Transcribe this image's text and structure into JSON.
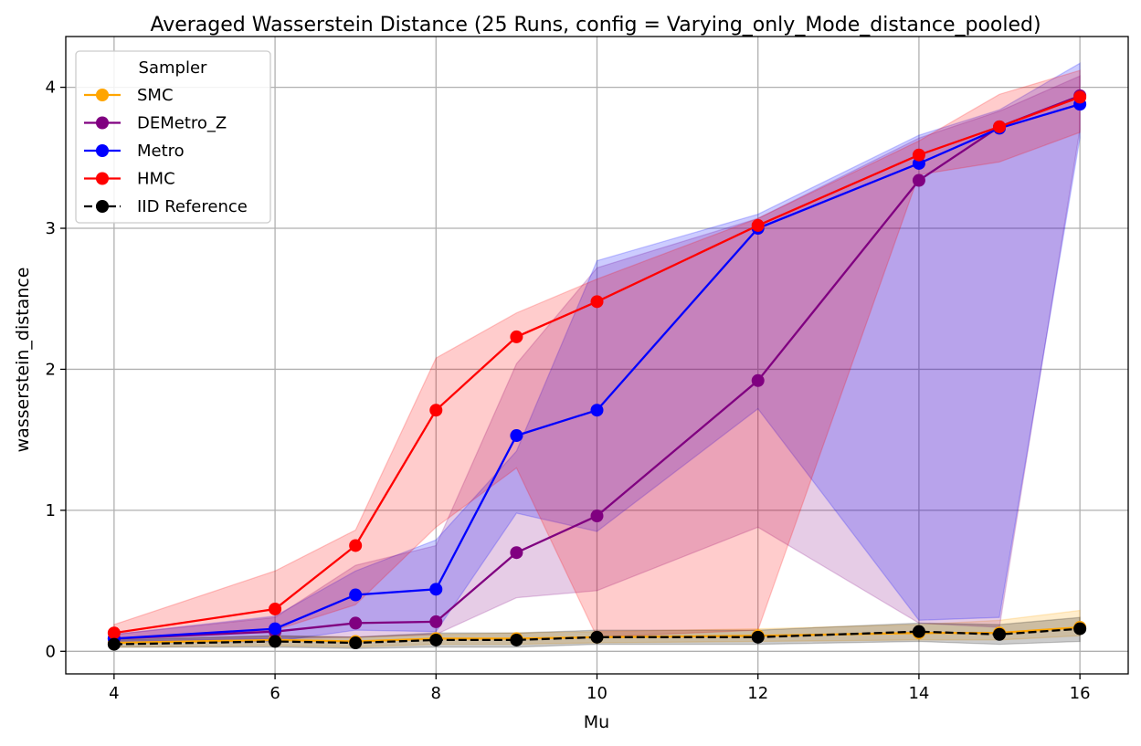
{
  "chart_data": {
    "type": "line",
    "title": "Averaged Wasserstein Distance (25 Runs, config = Varying_only_Mode_distance_pooled)",
    "xlabel": "Mu",
    "ylabel": "wasserstein_distance",
    "xlim": [
      3.4,
      16.6
    ],
    "ylim": [
      -0.16,
      4.36
    ],
    "xticks": [
      4,
      6,
      8,
      10,
      12,
      14,
      16
    ],
    "yticks": [
      0,
      1,
      2,
      3,
      4
    ],
    "grid": true,
    "legend_title": "Sampler",
    "legend_position": "top-left",
    "x": [
      4,
      6,
      7,
      8,
      9,
      10,
      12,
      14,
      15,
      16
    ],
    "series": [
      {
        "name": "SMC",
        "color": "#ffa500",
        "style": "solid",
        "values": [
          0.06,
          0.08,
          0.07,
          0.09,
          0.09,
          0.1,
          0.11,
          0.13,
          0.13,
          0.17
        ],
        "band_lower": [
          0.03,
          0.04,
          0.03,
          0.05,
          0.05,
          0.06,
          0.07,
          0.08,
          0.08,
          0.11
        ],
        "band_upper": [
          0.09,
          0.11,
          0.1,
          0.12,
          0.13,
          0.14,
          0.16,
          0.19,
          0.22,
          0.29
        ]
      },
      {
        "name": "DEMetro_Z",
        "color": "#800080",
        "style": "solid",
        "values": [
          0.09,
          0.14,
          0.2,
          0.21,
          0.7,
          0.96,
          1.92,
          3.34,
          3.72,
          3.94
        ],
        "band_lower": [
          0.07,
          0.09,
          0.1,
          0.12,
          0.38,
          0.43,
          0.88,
          0.2,
          0.17,
          3.7
        ],
        "band_upper": [
          0.12,
          0.24,
          0.61,
          0.75,
          2.04,
          2.72,
          3.07,
          3.64,
          3.83,
          4.08
        ]
      },
      {
        "name": "Metro",
        "color": "#0000ff",
        "style": "solid",
        "values": [
          0.09,
          0.16,
          0.4,
          0.44,
          1.53,
          1.71,
          3.0,
          3.46,
          3.71,
          3.88
        ],
        "band_lower": [
          0.06,
          0.07,
          0.15,
          0.14,
          0.98,
          0.85,
          1.72,
          0.22,
          0.24,
          3.64
        ],
        "band_upper": [
          0.12,
          0.25,
          0.57,
          0.79,
          1.42,
          2.77,
          3.1,
          3.66,
          3.84,
          4.17
        ]
      },
      {
        "name": "HMC",
        "color": "#ff0000",
        "style": "solid",
        "values": [
          0.13,
          0.3,
          0.75,
          1.71,
          2.23,
          2.48,
          3.02,
          3.52,
          3.72,
          3.93
        ],
        "band_lower": [
          0.09,
          0.15,
          0.33,
          0.88,
          1.3,
          0.1,
          0.15,
          3.38,
          3.47,
          3.68
        ],
        "band_upper": [
          0.19,
          0.57,
          0.86,
          2.08,
          2.4,
          2.64,
          3.07,
          3.62,
          3.95,
          4.12
        ]
      },
      {
        "name": "IID Reference",
        "color": "#000000",
        "style": "dashed",
        "values": [
          0.05,
          0.07,
          0.06,
          0.08,
          0.08,
          0.1,
          0.1,
          0.14,
          0.12,
          0.16
        ],
        "band_lower": [
          0.03,
          0.03,
          0.02,
          0.03,
          0.03,
          0.05,
          0.05,
          0.07,
          0.05,
          0.07
        ],
        "band_upper": [
          0.08,
          0.11,
          0.1,
          0.13,
          0.13,
          0.15,
          0.15,
          0.2,
          0.19,
          0.24
        ]
      }
    ]
  }
}
